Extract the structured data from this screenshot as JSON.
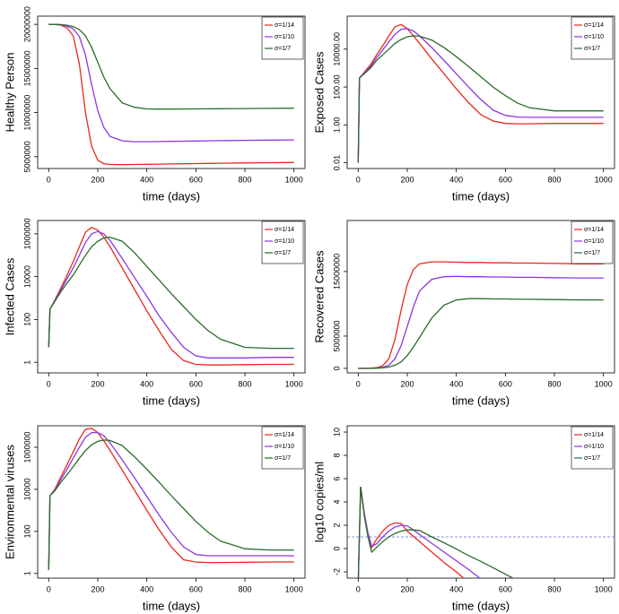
{
  "chart_data": [
    {
      "type": "line",
      "ylabel": "Healthy Person",
      "xlabel": "time (days)",
      "ylog": false,
      "xlim": [
        -45,
        1045
      ],
      "xticks": [
        0,
        200,
        400,
        600,
        800,
        1000
      ],
      "ylim": [
        3660000,
        20930000
      ],
      "yticks": [
        5000000,
        10000000,
        15000000,
        20000000
      ],
      "x": [
        0,
        5,
        25,
        50,
        75,
        100,
        125,
        150,
        175,
        200,
        225,
        250,
        300,
        350,
        400,
        450,
        500,
        550,
        600,
        650,
        700,
        800,
        900,
        1000
      ],
      "series": [
        {
          "name": "σ=1/14",
          "color": "#e8281e",
          "values": [
            20000000,
            20000000,
            20000000,
            19900000,
            19600000,
            18700000,
            15500000,
            10000000,
            6200000,
            4600000,
            4200000,
            4120000,
            4100000,
            4120000,
            4140000,
            4160000,
            4180000,
            4200000,
            4220000,
            4240000,
            4260000,
            4290000,
            4320000,
            4350000
          ]
        },
        {
          "name": "σ=1/10",
          "color": "#8a38e0",
          "values": [
            20000000,
            20000000,
            20000000,
            19950000,
            19800000,
            19500000,
            18600000,
            16500000,
            13200000,
            10200000,
            8300000,
            7300000,
            6800000,
            6700000,
            6700000,
            6720000,
            6740000,
            6760000,
            6780000,
            6800000,
            6820000,
            6850000,
            6880000,
            6900000
          ]
        },
        {
          "name": "σ=1/7",
          "color": "#2a6b2a",
          "values": [
            20000000,
            20000000,
            20000000,
            19970000,
            19900000,
            19750000,
            19400000,
            18700000,
            17400000,
            15700000,
            14000000,
            12700000,
            11100000,
            10600000,
            10420000,
            10400000,
            10400000,
            10410000,
            10420000,
            10430000,
            10440000,
            10460000,
            10480000,
            10500000
          ]
        }
      ]
    },
    {
      "type": "line",
      "ylabel": "Exposed Cases",
      "xlabel": "time (days)",
      "ylog": true,
      "xlim": [
        -45,
        1045
      ],
      "xticks": [
        0,
        200,
        400,
        600,
        800,
        1000
      ],
      "ylim": [
        0.005,
        550000
      ],
      "yticks": [
        0.01,
        {
          "value": 1,
          "label": "1.00"
        },
        {
          "value": 100,
          "label": "100.00"
        },
        {
          "value": 10000,
          "label": "10000.00"
        }
      ],
      "x": [
        0,
        5,
        25,
        50,
        75,
        100,
        125,
        150,
        175,
        200,
        225,
        250,
        300,
        350,
        400,
        450,
        500,
        550,
        600,
        650,
        700,
        800,
        900,
        1000
      ],
      "series": [
        {
          "name": "σ=1/14",
          "color": "#e8281e",
          "values": [
            0.01,
            300,
            600,
            1500,
            5000,
            15000,
            50000,
            150000,
            200000,
            120000,
            50000,
            20000,
            3000,
            500,
            80,
            15,
            3.5,
            1.6,
            1.2,
            1.15,
            1.15,
            1.2,
            1.2,
            1.2
          ]
        },
        {
          "name": "σ=1/10",
          "color": "#8a38e0",
          "values": [
            0.01,
            300,
            550,
            1200,
            3500,
            9000,
            25000,
            60000,
            110000,
            120000,
            90000,
            50000,
            12000,
            2500,
            500,
            100,
            22,
            6,
            3.2,
            2.6,
            2.5,
            2.5,
            2.5,
            2.5
          ]
        },
        {
          "name": "σ=1/7",
          "color": "#2a6b2a",
          "values": [
            0.01,
            300,
            500,
            1000,
            2500,
            5000,
            10000,
            20000,
            32000,
            45000,
            50000,
            48000,
            30000,
            12000,
            4000,
            1200,
            350,
            100,
            35,
            14,
            8,
            5.5,
            5.5,
            5.5
          ]
        }
      ]
    },
    {
      "type": "line",
      "ylabel": "Infected Cases",
      "xlabel": "time (days)",
      "ylog": true,
      "xlim": [
        -45,
        1045
      ],
      "xticks": [
        0,
        200,
        400,
        600,
        800,
        1000
      ],
      "ylim": [
        0.32,
        4200000
      ],
      "yticks": [
        1,
        100,
        10000,
        1000000
      ],
      "x": [
        0,
        5,
        25,
        50,
        75,
        100,
        125,
        150,
        175,
        200,
        225,
        250,
        300,
        350,
        400,
        450,
        500,
        550,
        600,
        650,
        700,
        800,
        900,
        1000
      ],
      "series": [
        {
          "name": "σ=1/14",
          "color": "#e8281e",
          "values": [
            5,
            300,
            800,
            3000,
            12000,
            50000,
            250000,
            1200000,
            2000000,
            1500000,
            700000,
            250000,
            25000,
            2500,
            250,
            30,
            4,
            1.2,
            0.8,
            0.75,
            0.75,
            0.78,
            0.8,
            0.8
          ]
        },
        {
          "name": "σ=1/10",
          "color": "#8a38e0",
          "values": [
            5,
            300,
            750,
            2500,
            8000,
            25000,
            100000,
            400000,
            1000000,
            1300000,
            1000000,
            500000,
            70000,
            9000,
            1200,
            150,
            25,
            5,
            2,
            1.6,
            1.6,
            1.6,
            1.7,
            1.7
          ]
        },
        {
          "name": "σ=1/7",
          "color": "#2a6b2a",
          "values": [
            5,
            300,
            700,
            2000,
            5000,
            12000,
            35000,
            100000,
            250000,
            450000,
            650000,
            700000,
            450000,
            130000,
            30000,
            7000,
            1600,
            400,
            100,
            30,
            12,
            5,
            4.5,
            4.5
          ]
        }
      ]
    },
    {
      "type": "line",
      "ylabel": "Recovered Cases",
      "xlabel": "time (days)",
      "ylog": false,
      "xlim": [
        -45,
        1045
      ],
      "xticks": [
        0,
        200,
        400,
        600,
        800,
        1000
      ],
      "ylim": [
        -700000,
        22900000
      ],
      "yticks": [
        0,
        5000000,
        15000000
      ],
      "x": [
        0,
        5,
        25,
        50,
        75,
        100,
        125,
        150,
        175,
        200,
        225,
        250,
        300,
        350,
        400,
        450,
        500,
        550,
        600,
        650,
        700,
        800,
        900,
        1000
      ],
      "series": [
        {
          "name": "σ=1/14",
          "color": "#e8281e",
          "values": [
            0,
            0,
            0,
            20000,
            100000,
            400000,
            1500000,
            4500000,
            9000000,
            13000000,
            15300000,
            16200000,
            16500000,
            16500000,
            16450000,
            16400000,
            16400000,
            16350000,
            16350000,
            16300000,
            16300000,
            16250000,
            16200000,
            16200000
          ]
        },
        {
          "name": "σ=1/10",
          "color": "#8a38e0",
          "values": [
            0,
            0,
            0,
            10000,
            50000,
            150000,
            500000,
            1500000,
            3500000,
            6500000,
            9500000,
            12000000,
            13800000,
            14200000,
            14250000,
            14200000,
            14200000,
            14150000,
            14150000,
            14100000,
            14100000,
            14050000,
            14000000,
            14000000
          ]
        },
        {
          "name": "σ=1/7",
          "color": "#2a6b2a",
          "values": [
            0,
            0,
            0,
            0,
            20000,
            80000,
            200000,
            500000,
            1000000,
            2000000,
            3300000,
            4800000,
            7800000,
            9800000,
            10600000,
            10800000,
            10800000,
            10750000,
            10750000,
            10700000,
            10700000,
            10650000,
            10600000,
            10600000
          ]
        }
      ]
    },
    {
      "type": "line",
      "ylabel": "Environmental viruses",
      "xlabel": "time (days)",
      "ylog": true,
      "xlim": [
        -45,
        1045
      ],
      "xticks": [
        0,
        200,
        400,
        600,
        800,
        1000
      ],
      "ylim": [
        0.6,
        10500000
      ],
      "yticks": [
        1,
        100,
        10000,
        1000000
      ],
      "x": [
        0,
        5,
        25,
        50,
        75,
        100,
        125,
        150,
        175,
        200,
        225,
        250,
        300,
        350,
        400,
        450,
        500,
        550,
        600,
        650,
        700,
        800,
        900,
        1000
      ],
      "series": [
        {
          "name": "σ=1/14",
          "color": "#e8281e",
          "values": [
            1.5,
            5000,
            10000,
            40000,
            150000,
            600000,
            2500000,
            7000000,
            8000000,
            5000000,
            2000000,
            700000,
            80000,
            9000,
            1000,
            120,
            18,
            4.5,
            3.5,
            3.3,
            3.3,
            3.4,
            3.5,
            3.5
          ]
        },
        {
          "name": "σ=1/10",
          "color": "#8a38e0",
          "values": [
            1.5,
            5000,
            9000,
            30000,
            90000,
            300000,
            1000000,
            3000000,
            5000000,
            5000000,
            3500000,
            1600000,
            250000,
            35000,
            4500,
            600,
            90,
            18,
            8,
            7,
            7,
            7,
            7,
            7
          ]
        },
        {
          "name": "σ=1/7",
          "color": "#2a6b2a",
          "values": [
            1.5,
            5000,
            8500,
            22000,
            50000,
            120000,
            300000,
            700000,
            1300000,
            1900000,
            2200000,
            2100000,
            1200000,
            350000,
            90000,
            22000,
            5000,
            1200,
            300,
            90,
            35,
            15,
            13,
            13
          ]
        }
      ]
    },
    {
      "type": "line",
      "ylabel": "log10 copies/ml",
      "xlabel": "time (days)",
      "ylog": false,
      "xlim": [
        -45,
        1045
      ],
      "xticks": [
        0,
        200,
        400,
        600,
        800,
        1000
      ],
      "ylim": [
        -2.54,
        10.54
      ],
      "yticks": [
        -2,
        0,
        2,
        4,
        6,
        8,
        10
      ],
      "hline": 1,
      "hline_color": "#5b6fd6",
      "x": [
        0,
        10,
        25,
        40,
        55,
        75,
        100,
        125,
        150,
        175,
        200,
        225,
        250,
        300,
        350,
        400,
        450,
        500,
        550,
        600,
        650,
        700,
        800,
        900,
        1000
      ],
      "series": [
        {
          "name": "σ=1/14",
          "color": "#e8281e",
          "values": [
            -3,
            5.3,
            3,
            1.3,
            0.1,
            0.8,
            1.5,
            2.0,
            2.2,
            2.15,
            1.5,
            1.05,
            0.6,
            -0.3,
            -1.2,
            -2.0,
            -2.9,
            null,
            null,
            null,
            null,
            null,
            null,
            null,
            null
          ]
        },
        {
          "name": "σ=1/10",
          "color": "#8a38e0",
          "values": [
            -3,
            5.3,
            3,
            1.3,
            0.2,
            0.4,
            1.0,
            1.5,
            1.85,
            2.0,
            1.95,
            1.6,
            1.2,
            0.45,
            -0.3,
            -1.05,
            -1.8,
            -2.6,
            null,
            null,
            null,
            null,
            null,
            null,
            null
          ]
        },
        {
          "name": "σ=1/7",
          "color": "#2a6b2a",
          "values": [
            -3,
            5.3,
            2.8,
            1.0,
            -0.3,
            0.1,
            0.6,
            1.0,
            1.3,
            1.5,
            1.6,
            1.6,
            1.55,
            1.0,
            0.5,
            -0.05,
            -0.6,
            -1.1,
            -1.65,
            -2.2,
            -2.75,
            null,
            null,
            null,
            null
          ]
        }
      ]
    }
  ]
}
